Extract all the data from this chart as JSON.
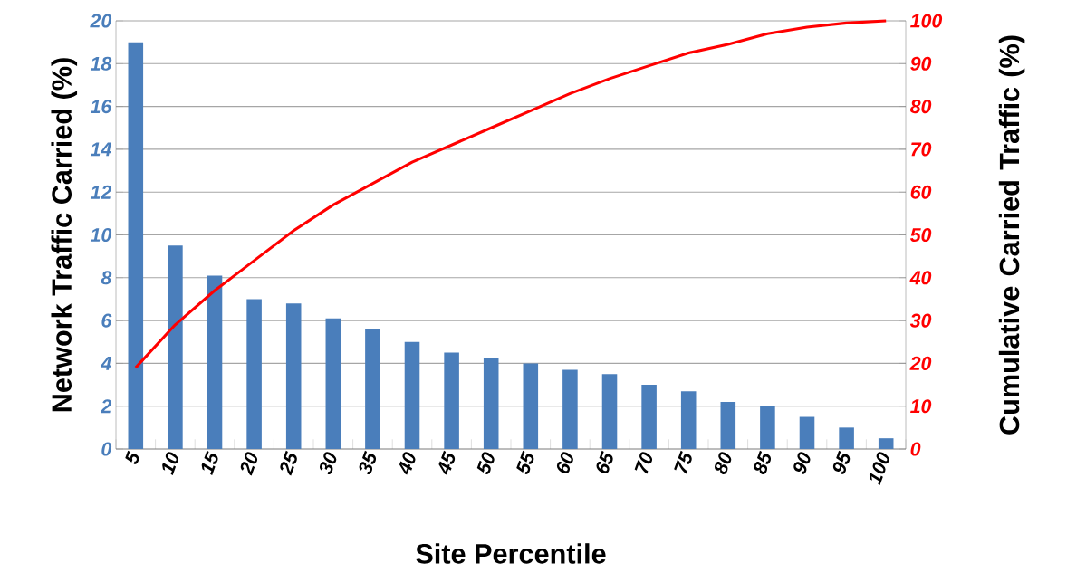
{
  "chart_data": {
    "type": "bar",
    "xlabel": "Site Percentile",
    "ylabel": "Network Traffic Carried (%)",
    "y2label": "Cumulative Carried Traffic (%)",
    "categories": [
      "5",
      "10",
      "15",
      "20",
      "25",
      "30",
      "35",
      "40",
      "45",
      "50",
      "55",
      "60",
      "65",
      "70",
      "75",
      "80",
      "85",
      "90",
      "95",
      "100"
    ],
    "series": [
      {
        "color": "#4a7ebb",
        "values": [
          19,
          9.5,
          8.1,
          7.0,
          6.8,
          6.1,
          5.6,
          5.0,
          4.5,
          4.25,
          4.0,
          3.7,
          3.5,
          3.0,
          2.7,
          2.2,
          2.0,
          1.5,
          1.0,
          0.5
        ]
      },
      {
        "type": "line",
        "axis": "y2",
        "color": "#ff0000",
        "values": [
          19,
          29,
          37,
          44,
          51,
          57,
          62,
          67,
          71,
          75,
          79,
          83,
          86.5,
          89.5,
          92.5,
          94.5,
          97,
          98.5,
          99.5,
          100
        ]
      }
    ],
    "ylim": [
      0,
      20
    ],
    "yticks": [
      0,
      2,
      4,
      6,
      8,
      10,
      12,
      14,
      16,
      18,
      20
    ],
    "y2lim": [
      0,
      100
    ],
    "y2ticks": [
      0,
      10,
      20,
      30,
      40,
      50,
      60,
      70,
      80,
      90,
      100
    ],
    "grid": "y"
  }
}
